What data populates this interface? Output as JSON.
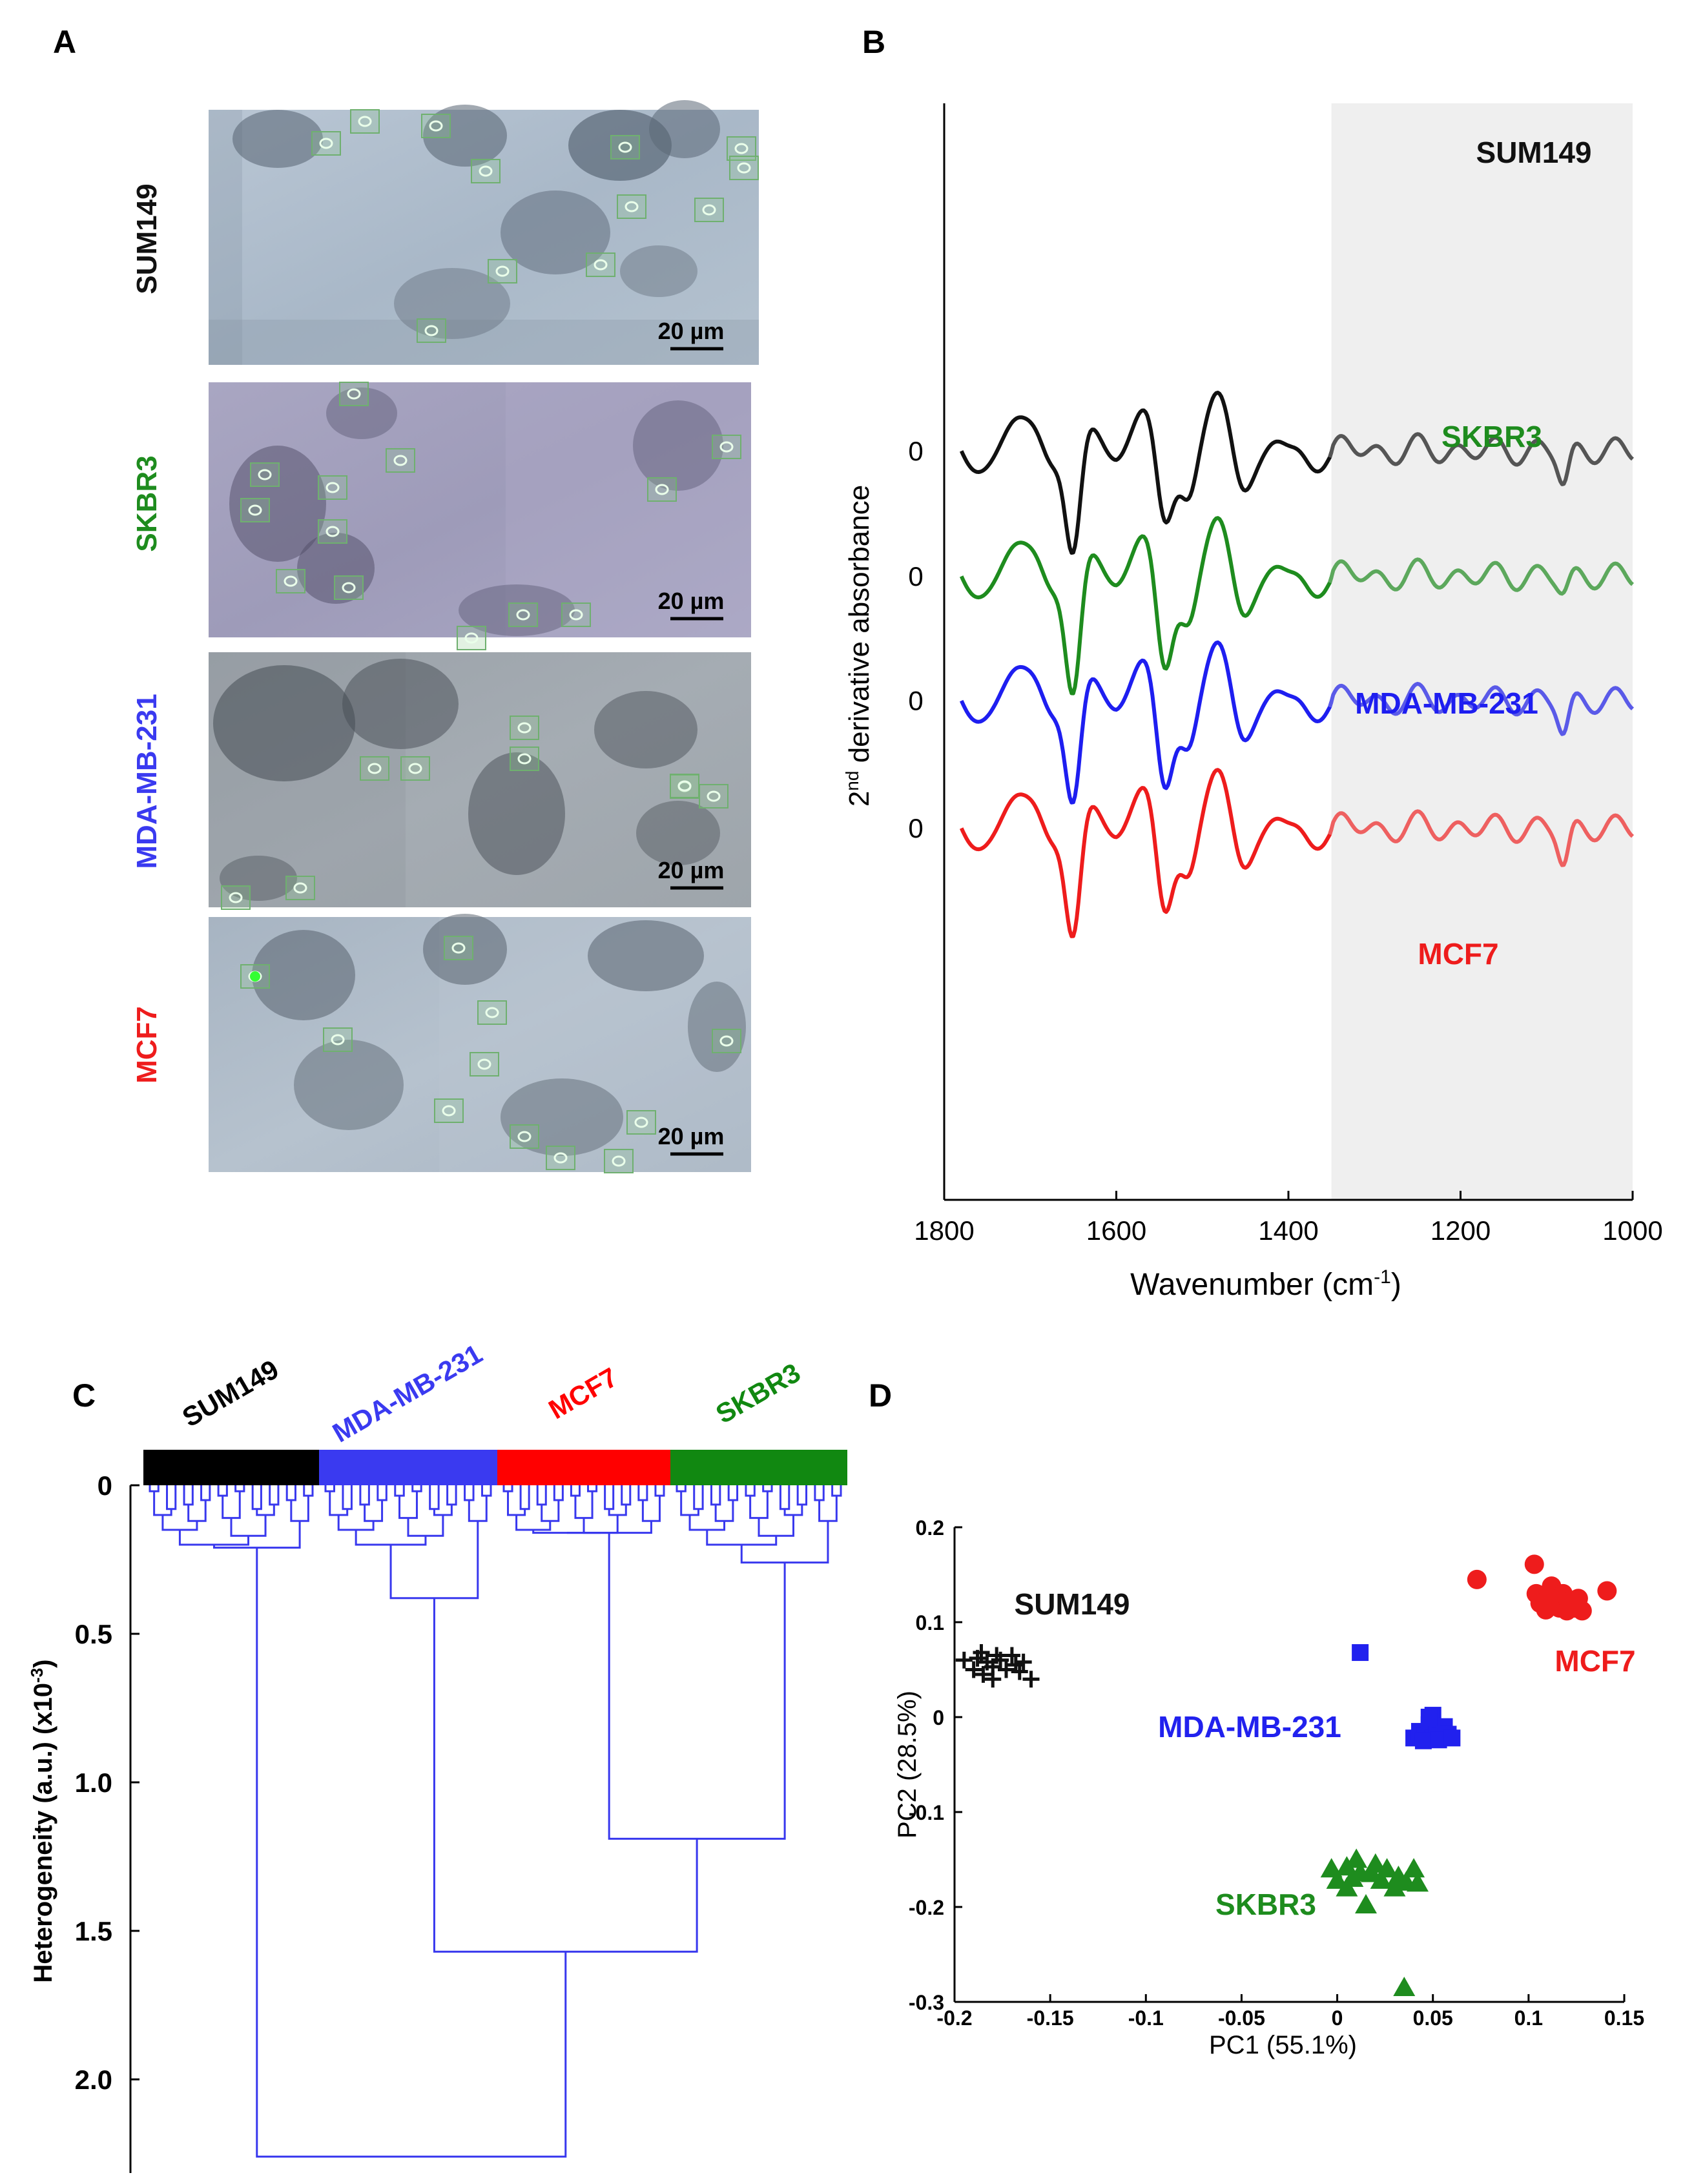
{
  "panels": {
    "a": {
      "letter": "A",
      "images": [
        {
          "label": "SUM149",
          "color": "#111111",
          "scale_bar": "20 µm"
        },
        {
          "label": "SKBR3",
          "color": "#1e8c1e",
          "scale_bar": "20 µm"
        },
        {
          "label": "MDA-MB-231",
          "color": "#3a3af0",
          "scale_bar": "20 µm"
        },
        {
          "label": "MCF7",
          "color": "#ee1c1c",
          "scale_bar": "20 µm"
        }
      ]
    },
    "b": {
      "letter": "B",
      "zero_label": "0",
      "ylabel_main": "2",
      "ylabel_sup": "nd",
      "ylabel_rest": " derivative absorbance",
      "xlabel_main": "Wavenumber (cm",
      "xlabel_sup": "-1",
      "xlabel_end": ")"
    },
    "c": {
      "letter": "C",
      "ylabel": "Heterogeneity (a.u.) (x10",
      "ylabel_sup": "-3",
      "ylabel_end": ")"
    },
    "d": {
      "letter": "D"
    }
  },
  "chart_data": [
    {
      "id": "spectra",
      "type": "line",
      "xlabel": "Wavenumber (cm-1)",
      "ylabel": "2nd derivative absorbance",
      "xlim": [
        1800,
        1000
      ],
      "x_ticks": [
        "1800",
        "1600",
        "1400",
        "1200",
        "1000"
      ],
      "shaded_region": [
        1350,
        1000
      ],
      "series": [
        {
          "name": "SUM149",
          "color": "#111111",
          "shade_color": "#555555",
          "minima": {
            "1650": -1.0,
            "1545": -0.55,
            "1080": -0.25
          }
        },
        {
          "name": "SKBR3",
          "color": "#1e8c1e",
          "shade_color": "#5ca85c",
          "minima": {
            "1650": -1.12,
            "1545": -0.72,
            "1080": -0.12
          }
        },
        {
          "name": "MDA-MB-231",
          "color": "#1e1ef0",
          "shade_color": "#5a5ae8",
          "minima": {
            "1650": -1.0,
            "1545": -0.68,
            "1080": -0.25
          }
        },
        {
          "name": "MCF7",
          "color": "#ee1c1c",
          "shade_color": "#ee6060",
          "minima": {
            "1650": -1.05,
            "1545": -0.65,
            "1080": -0.28
          }
        }
      ]
    },
    {
      "id": "dendrogram",
      "type": "dendrogram",
      "ylabel": "Heterogeneity (a.u.) (x10-3)",
      "ylim": [
        0,
        2.3
      ],
      "y_ticks": [
        "0",
        "0.5",
        "1.0",
        "1.5",
        "2.0"
      ],
      "clusters": [
        {
          "name": "SUM149",
          "color": "#000000",
          "merge_height": 0.21
        },
        {
          "name": "MDA-MB-231",
          "color": "#3a3af0",
          "merge_height": 0.38
        },
        {
          "name": "MCF7",
          "color": "#ff0000",
          "merge_height": 0.16
        },
        {
          "name": "SKBR3",
          "color": "#118811",
          "merge_height": 0.26
        }
      ],
      "joins": [
        {
          "between": [
            "MCF7",
            "SKBR3"
          ],
          "height": 1.19
        },
        {
          "between": [
            "MDA-MB-231",
            "MCF7+SKBR3"
          ],
          "height": 1.57
        },
        {
          "between": [
            "SUM149",
            "rest"
          ],
          "height": 2.26
        }
      ]
    },
    {
      "id": "pca",
      "type": "scatter",
      "xlabel": "PC1 (55.1%)",
      "ylabel": "PC2 (28.5%)",
      "xlim": [
        -0.2,
        0.15
      ],
      "ylim": [
        -0.3,
        0.2
      ],
      "x_ticks": [
        "-0.2",
        "-0.15",
        "-0.1",
        "-0.05",
        "0",
        "0.05",
        "0.1",
        "0.15"
      ],
      "y_ticks": [
        "0.2",
        "0.1",
        "0",
        "-0.1",
        "-0.2",
        "-0.3"
      ],
      "series": [
        {
          "name": "SUM149",
          "color": "#111111",
          "marker": "plus",
          "points": [
            [
              -0.195,
              0.06
            ],
            [
              -0.19,
              0.05
            ],
            [
              -0.188,
              0.062
            ],
            [
              -0.185,
              0.045
            ],
            [
              -0.183,
              0.058
            ],
            [
              -0.18,
              0.053
            ],
            [
              -0.178,
              0.065
            ],
            [
              -0.176,
              0.06
            ],
            [
              -0.173,
              0.05
            ],
            [
              -0.17,
              0.065
            ],
            [
              -0.168,
              0.055
            ],
            [
              -0.166,
              0.048
            ],
            [
              -0.164,
              0.058
            ],
            [
              -0.16,
              0.04
            ],
            [
              -0.186,
              0.068
            ],
            [
              -0.18,
              0.04
            ]
          ]
        },
        {
          "name": "MDA-MB-231",
          "color": "#2121ee",
          "marker": "square",
          "points": [
            [
              0.012,
              0.068
            ],
            [
              0.04,
              -0.022
            ],
            [
              0.043,
              -0.015
            ],
            [
              0.046,
              -0.02
            ],
            [
              0.048,
              -0.008
            ],
            [
              0.05,
              0.002
            ],
            [
              0.05,
              -0.022
            ],
            [
              0.052,
              -0.012
            ],
            [
              0.054,
              -0.02
            ],
            [
              0.056,
              -0.01
            ],
            [
              0.058,
              -0.018
            ],
            [
              0.045,
              -0.025
            ],
            [
              0.053,
              -0.024
            ],
            [
              0.06,
              -0.022
            ],
            [
              0.048,
              0.0
            ]
          ]
        },
        {
          "name": "MCF7",
          "color": "#ee1c1c",
          "marker": "circle",
          "points": [
            [
              0.073,
              0.145
            ],
            [
              0.103,
              0.161
            ],
            [
              0.104,
              0.13
            ],
            [
              0.106,
              0.12
            ],
            [
              0.109,
              0.113
            ],
            [
              0.112,
              0.138
            ],
            [
              0.114,
              0.122
            ],
            [
              0.116,
              0.115
            ],
            [
              0.118,
              0.13
            ],
            [
              0.12,
              0.112
            ],
            [
              0.122,
              0.122
            ],
            [
              0.124,
              0.115
            ],
            [
              0.126,
              0.125
            ],
            [
              0.128,
              0.112
            ],
            [
              0.141,
              0.133
            ],
            [
              0.11,
              0.125
            ]
          ]
        },
        {
          "name": "SKBR3",
          "color": "#1e8c1e",
          "marker": "triangle",
          "points": [
            [
              -0.003,
              -0.16
            ],
            [
              0.0,
              -0.172
            ],
            [
              0.005,
              -0.158
            ],
            [
              0.008,
              -0.17
            ],
            [
              0.01,
              -0.15
            ],
            [
              0.012,
              -0.164
            ],
            [
              0.015,
              -0.198
            ],
            [
              0.018,
              -0.165
            ],
            [
              0.02,
              -0.155
            ],
            [
              0.023,
              -0.172
            ],
            [
              0.026,
              -0.16
            ],
            [
              0.03,
              -0.18
            ],
            [
              0.032,
              -0.168
            ],
            [
              0.036,
              -0.174
            ],
            [
              0.04,
              -0.16
            ],
            [
              0.042,
              -0.175
            ],
            [
              0.035,
              -0.285
            ],
            [
              0.005,
              -0.18
            ]
          ]
        }
      ],
      "annotations": [
        "SUM149",
        "MDA-MB-231",
        "MCF7",
        "SKBR3"
      ]
    }
  ]
}
